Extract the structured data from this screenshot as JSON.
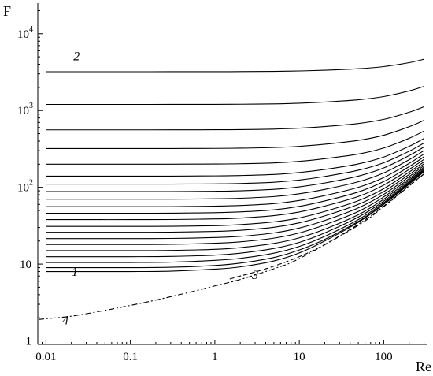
{
  "chart_data": {
    "type": "line",
    "xlabel": "Re",
    "ylabel": "F",
    "xscale": "log",
    "yscale": "log",
    "xlim": [
      0.008,
      330
    ],
    "ylim": [
      0.9,
      25000
    ],
    "x_ticks": [
      {
        "value": 0.01,
        "label": "0.01"
      },
      {
        "value": 0.1,
        "label": "0.1"
      },
      {
        "value": 1,
        "label": "1"
      },
      {
        "value": 10,
        "label": "10"
      },
      {
        "value": 100,
        "label": "100"
      }
    ],
    "y_ticks": [
      {
        "value": 1,
        "base": "1",
        "exp": ""
      },
      {
        "value": 10,
        "base": "10",
        "exp": ""
      },
      {
        "value": 100,
        "base": "10",
        "exp": "2"
      },
      {
        "value": 1000,
        "base": "10",
        "exp": "3"
      },
      {
        "value": 10000,
        "base": "10",
        "exp": "4"
      }
    ],
    "x": [
      0.01,
      0.03,
      0.1,
      0.3,
      1,
      2,
      5,
      10,
      20,
      50,
      100,
      200,
      300
    ],
    "series": [
      {
        "name": "1",
        "style": "solid",
        "values": [
          8,
          8,
          8,
          8.1,
          8.6,
          9.2,
          11,
          14,
          20,
          35,
          60,
          110,
          160
        ]
      },
      {
        "style": "solid",
        "values": [
          9,
          9,
          9,
          9.1,
          9.6,
          10.3,
          12.2,
          15.3,
          21,
          36,
          61,
          112,
          162
        ]
      },
      {
        "style": "solid",
        "values": [
          10.5,
          10.5,
          10.5,
          10.6,
          11.2,
          11.9,
          13.9,
          17,
          23,
          38,
          63,
          115,
          165
        ]
      },
      {
        "style": "solid",
        "values": [
          12.5,
          12.5,
          12.5,
          12.6,
          13.1,
          13.9,
          16,
          19.2,
          25.5,
          41,
          66,
          119,
          170
        ]
      },
      {
        "style": "solid",
        "values": [
          15,
          15,
          15,
          15.1,
          15.6,
          16.4,
          18.6,
          22,
          28.5,
          44,
          70,
          124,
          176
        ]
      },
      {
        "style": "solid",
        "values": [
          18,
          18,
          18,
          18.1,
          18.7,
          19.5,
          21.8,
          25.5,
          32.5,
          48.5,
          75,
          130,
          183
        ]
      },
      {
        "style": "solid",
        "values": [
          21.5,
          21.5,
          21.5,
          21.6,
          22.2,
          23,
          25.5,
          29.5,
          37,
          54,
          81,
          138,
          192
        ]
      },
      {
        "style": "solid",
        "values": [
          26,
          26,
          26,
          26.1,
          26.7,
          27.6,
          30.2,
          34.5,
          42.5,
          60,
          88,
          147,
          203
        ]
      },
      {
        "style": "solid",
        "values": [
          31,
          31,
          31,
          31.1,
          31.7,
          32.7,
          35.5,
          40,
          48.5,
          67,
          96,
          158,
          215
        ]
      },
      {
        "style": "solid",
        "values": [
          38,
          38,
          38,
          38.1,
          38.8,
          39.8,
          42.8,
          47.8,
          57,
          76,
          107,
          171,
          231
        ]
      },
      {
        "style": "solid",
        "values": [
          46,
          46,
          46,
          46.1,
          46.8,
          47.9,
          51,
          56.5,
          66.5,
          87,
          119,
          186,
          250
        ]
      },
      {
        "style": "solid",
        "values": [
          56,
          56,
          56,
          56.1,
          56.9,
          58,
          61.4,
          67.5,
          78,
          100,
          134,
          205,
          272
        ]
      },
      {
        "style": "solid",
        "values": [
          70,
          70,
          70,
          70.1,
          70.9,
          72.1,
          75.8,
          82.5,
          94,
          118,
          154,
          229,
          301
        ]
      },
      {
        "style": "solid",
        "values": [
          88,
          88,
          88,
          88.1,
          88.9,
          90.2,
          94.2,
          101.5,
          114,
          140,
          179,
          259,
          336
        ]
      },
      {
        "style": "solid",
        "values": [
          110,
          110,
          110,
          110.1,
          111,
          112.3,
          116.6,
          124.5,
          138.5,
          167,
          209,
          295,
          378
        ]
      },
      {
        "style": "solid",
        "values": [
          140,
          140,
          140,
          140.1,
          141,
          142.5,
          147,
          156,
          171,
          202,
          248,
          342,
          433
        ]
      },
      {
        "style": "solid",
        "values": [
          200,
          200,
          200,
          200.2,
          201.2,
          202.8,
          208,
          218,
          236,
          271,
          325,
          435,
          540
        ]
      },
      {
        "style": "solid",
        "values": [
          320,
          320,
          320,
          320.2,
          321.5,
          323.5,
          330,
          342,
          364,
          409,
          477,
          615,
          745
        ]
      },
      {
        "style": "solid",
        "values": [
          560,
          560,
          560,
          560.3,
          562,
          564.5,
          573,
          589,
          619,
          678,
          768,
          950,
          1120
        ]
      },
      {
        "style": "solid",
        "values": [
          1200,
          1200,
          1200,
          1200.5,
          1203,
          1207,
          1220,
          1245,
          1290,
          1380,
          1520,
          1800,
          2060
        ]
      },
      {
        "name": "2",
        "style": "solid",
        "values": [
          3200,
          3200,
          3200,
          3200.8,
          3205,
          3212,
          3235,
          3275,
          3350,
          3500,
          3730,
          4200,
          4650
        ]
      }
    ],
    "reference_curves": [
      {
        "name": "3",
        "style": "dashed",
        "x": [
          1.5,
          2,
          3,
          5,
          10,
          20,
          50,
          100,
          200,
          300
        ],
        "values": [
          6.4,
          7,
          7.9,
          9.4,
          12.5,
          18,
          33,
          57,
          105,
          150
        ]
      },
      {
        "name": "4",
        "style": "dashdot",
        "x": [
          0.008,
          0.01,
          0.02,
          0.05,
          0.1,
          0.2,
          0.5,
          1,
          2,
          5,
          10,
          50,
          100,
          200,
          300
        ],
        "values": [
          1.9,
          1.95,
          2.1,
          2.5,
          2.9,
          3.4,
          4.3,
          5.2,
          6.3,
          8.7,
          11.8,
          32,
          56,
          104,
          149
        ]
      }
    ],
    "curve_labels": [
      {
        "text": "1",
        "x": 0.022,
        "y": 7
      },
      {
        "text": "2",
        "x": 0.023,
        "y": 4500
      },
      {
        "text": "3",
        "x": 3,
        "y": 6.4
      },
      {
        "text": "4",
        "x": 0.017,
        "y": 1.65
      }
    ]
  }
}
